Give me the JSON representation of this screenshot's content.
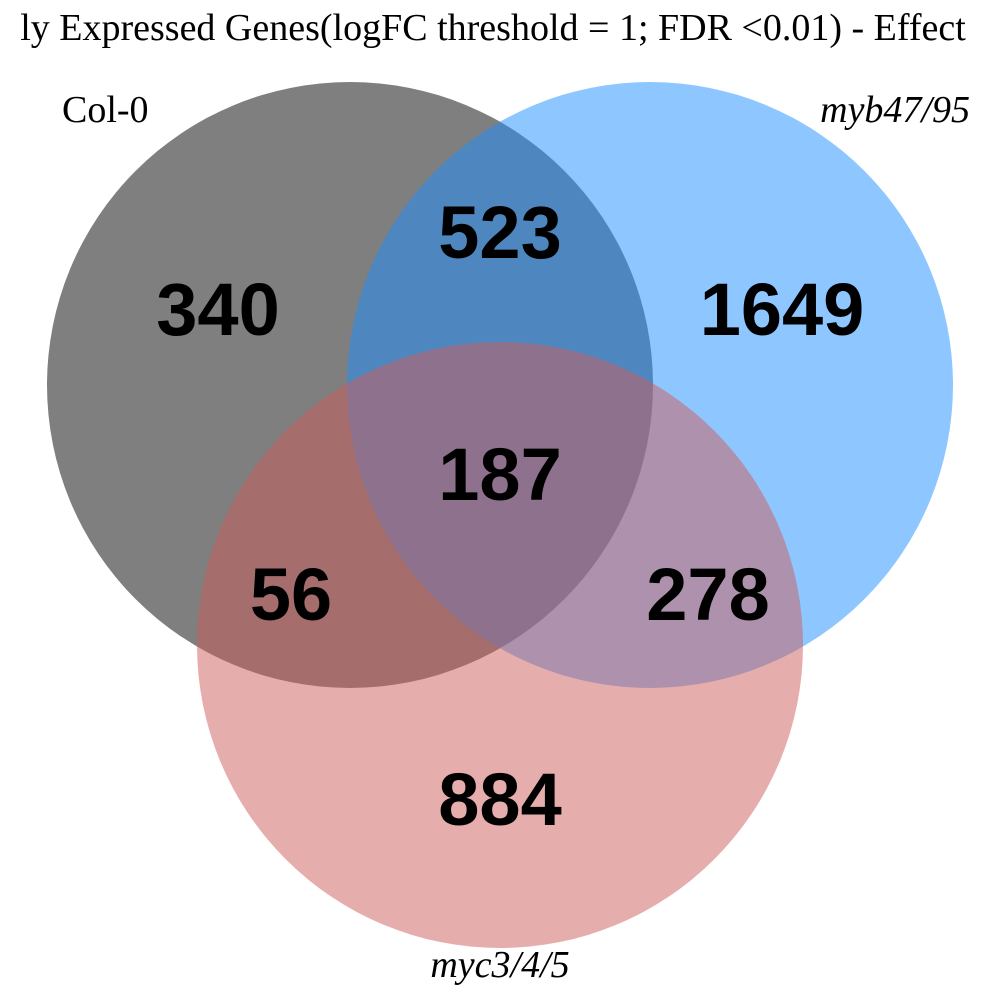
{
  "title": "ly Expressed Genes(logFC threshold = 1; FDR <0.01) - Effect",
  "sets": [
    {
      "label": "Col-0",
      "italic": false,
      "color": "#000000",
      "opacity": 0.5
    },
    {
      "label": "myb47/95",
      "italic": true,
      "color": "#1e90ff",
      "opacity": 0.5
    },
    {
      "label": "myc3/4/5",
      "italic": true,
      "color": "#cd5c5c",
      "opacity": 0.5
    }
  ],
  "regions": {
    "col0_only": "340",
    "col0_myb": "523",
    "myb_only": "1649",
    "all_three": "187",
    "col0_myc": "56",
    "myb_myc": "278",
    "myc_only": "884"
  }
}
